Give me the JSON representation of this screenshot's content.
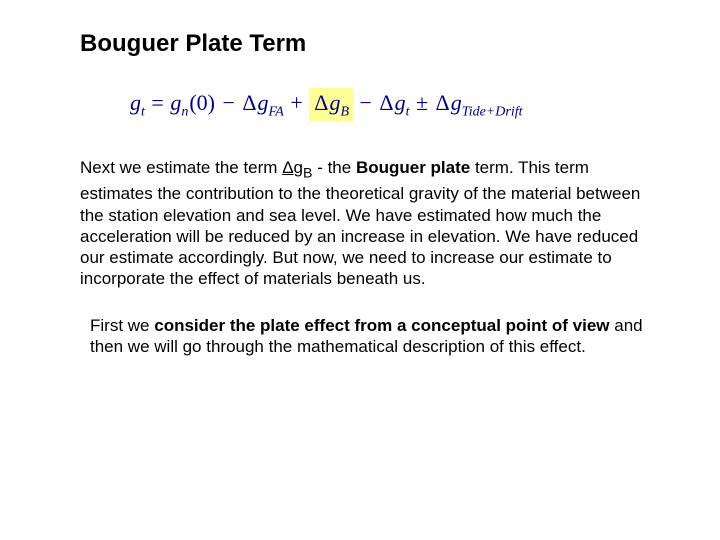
{
  "title": "Bouguer Plate Term",
  "equation": {
    "color": "#000080",
    "highlight_bg": "#ffff99",
    "lhs_var": "g",
    "lhs_sub": "t",
    "rhs1_var": "g",
    "rhs1_sub": "n",
    "rhs1_arg": "(0)",
    "minus": "−",
    "plus": "+",
    "pm": "±",
    "delta": "Δ",
    "term_fa_var": "g",
    "term_fa_sub": "FA",
    "term_b_var": "g",
    "term_b_sub": "B",
    "term_t_var": "g",
    "term_t_sub": "t",
    "term_td_var": "g",
    "term_td_sub": "Tide+Drift"
  },
  "p1": {
    "t1": "Next we estimate the term ",
    "delta": "Δ",
    "gvar": "g",
    "gsub": "B",
    "t2": " - the ",
    "bold1": "Bouguer plate",
    "t3": " term. This term estimates the contribution to the theoretical gravity of the material between the station elevation and sea level. We have estimated how much the acceleration will be reduced by an increase in elevation. We have reduced our estimate accordingly. But now, we need to increase our estimate to incorporate the effect of materials beneath us."
  },
  "p2": {
    "t1": "First we ",
    "bold1": "consider the plate effect from a conceptual point of view",
    "t2": " and then we will go through the mathematical description of this effect."
  }
}
